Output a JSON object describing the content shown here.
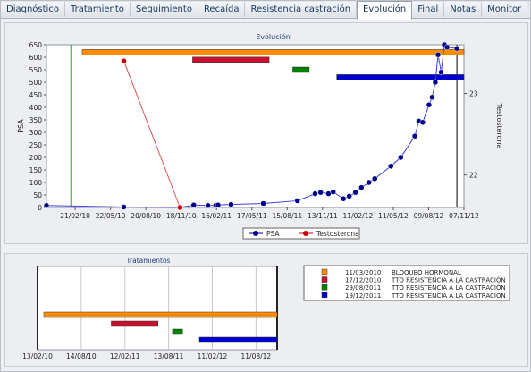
{
  "tabs": [
    {
      "label": "Diagnóstico"
    },
    {
      "label": "Tratamiento"
    },
    {
      "label": "Seguimiento"
    },
    {
      "label": "Recaída"
    },
    {
      "label": "Resistencia castración"
    },
    {
      "label": "Evolución",
      "active": true
    },
    {
      "label": "Final"
    },
    {
      "label": "Notas"
    },
    {
      "label": "Monitor"
    }
  ],
  "evolucion": {
    "chart_data": {
      "type": "line",
      "title": "Evolución",
      "ylabel": "PSA",
      "y2label": "Testosterona",
      "ylim": [
        0,
        650
      ],
      "y_ticks": [
        0,
        50,
        100,
        150,
        200,
        250,
        300,
        350,
        400,
        450,
        500,
        550,
        600,
        650
      ],
      "y2_ticks": [
        {
          "label": "23",
          "value": 23
        },
        {
          "label": "22",
          "value": 22
        }
      ],
      "y2lim": [
        21.6,
        23.6
      ],
      "xlim": [
        "2009-12-10",
        "2012-11-07"
      ],
      "x_ticks": [
        {
          "label": "21/02/10",
          "date": "2010-02-21"
        },
        {
          "label": "22/05/10",
          "date": "2010-05-22"
        },
        {
          "label": "20/08/10",
          "date": "2010-08-20"
        },
        {
          "label": "18/11/10",
          "date": "2010-11-18"
        },
        {
          "label": "16/02/11",
          "date": "2011-02-16"
        },
        {
          "label": "17/05/11",
          "date": "2011-05-17"
        },
        {
          "label": "15/08/11",
          "date": "2011-08-15"
        },
        {
          "label": "13/11/11",
          "date": "2011-11-13"
        },
        {
          "label": "11/02/12",
          "date": "2012-02-11"
        },
        {
          "label": "11/05/12",
          "date": "2012-05-11"
        },
        {
          "label": "09/08/12",
          "date": "2012-08-09"
        },
        {
          "label": "07/11/12",
          "date": "2012-11-07"
        }
      ],
      "series": [
        {
          "name": "PSA",
          "color": "#00008b",
          "marker": "circle",
          "axis": "left",
          "points": [
            [
              "2009-12-10",
              8
            ],
            [
              "2010-06-25",
              2
            ],
            [
              "2010-11-15",
              0
            ],
            [
              "2010-12-20",
              10
            ],
            [
              "2011-01-25",
              8
            ],
            [
              "2011-02-14",
              9
            ],
            [
              "2011-02-20",
              10
            ],
            [
              "2011-03-25",
              12
            ],
            [
              "2011-06-15",
              16
            ],
            [
              "2011-09-10",
              27
            ],
            [
              "2011-10-25",
              55
            ],
            [
              "2011-11-08",
              60
            ],
            [
              "2011-11-28",
              55
            ],
            [
              "2011-12-10",
              62
            ],
            [
              "2012-01-05",
              35
            ],
            [
              "2012-01-20",
              45
            ],
            [
              "2012-02-05",
              60
            ],
            [
              "2012-02-20",
              80
            ],
            [
              "2012-03-10",
              100
            ],
            [
              "2012-03-25",
              115
            ],
            [
              "2012-05-05",
              165
            ],
            [
              "2012-05-30",
              200
            ],
            [
              "2012-07-05",
              285
            ],
            [
              "2012-07-15",
              345
            ],
            [
              "2012-07-25",
              340
            ],
            [
              "2012-08-10",
              410
            ],
            [
              "2012-08-18",
              440
            ],
            [
              "2012-08-26",
              500
            ],
            [
              "2012-09-02",
              610
            ],
            [
              "2012-09-10",
              540
            ],
            [
              "2012-09-18",
              650
            ],
            [
              "2012-09-25",
              640
            ],
            [
              "2012-10-20",
              635
            ]
          ]
        },
        {
          "name": "Testosterona",
          "color": "#cc0000",
          "marker": "circle",
          "axis": "right",
          "points": [
            [
              "2010-06-25",
              23.4
            ],
            [
              "2010-11-15",
              21.6
            ]
          ]
        }
      ],
      "vlines": [
        {
          "date": "2010-02-10",
          "color": "#2ca02c"
        },
        {
          "date": "2012-10-20",
          "color": "#000000"
        }
      ],
      "treatment_bars": [
        {
          "start": "2010-03-11",
          "end": "2012-11-07",
          "color": "#ff8c00",
          "y": 620
        },
        {
          "start": "2010-12-17",
          "end": "2011-06-30",
          "color": "#c8102e",
          "y": 590
        },
        {
          "start": "2011-08-29",
          "end": "2011-10-10",
          "color": "#008000",
          "y": 550
        },
        {
          "start": "2011-12-19",
          "end": "2012-11-07",
          "color": "#0000cd",
          "y": 520
        }
      ],
      "legend": [
        {
          "name": "PSA",
          "color": "#00008b"
        },
        {
          "name": "Testosterona",
          "color": "#cc0000"
        }
      ],
      "legend_position": "bottom-center",
      "grid": false
    }
  },
  "tratamientos": {
    "chart_data": {
      "type": "gantt",
      "title": "Tratamientos",
      "xlim": [
        "2010-02-13",
        "2012-11-07"
      ],
      "x_ticks": [
        {
          "label": "13/02/10",
          "date": "2010-02-13"
        },
        {
          "label": "14/08/10",
          "date": "2010-08-14"
        },
        {
          "label": "12/02/11",
          "date": "2011-02-12"
        },
        {
          "label": "13/08/11",
          "date": "2011-08-13"
        },
        {
          "label": "11/02/12",
          "date": "2012-02-11"
        },
        {
          "label": "11/08/12",
          "date": "2012-08-11"
        }
      ],
      "bars": [
        {
          "start": "2010-03-11",
          "end": "2012-11-07",
          "color": "#ff8c00",
          "label": "BLOQUEO HORMONAL",
          "date_label": "11/03/2010"
        },
        {
          "start": "2010-12-17",
          "end": "2011-06-30",
          "color": "#c8102e",
          "label": "TTO RESISTENCIA A LA CASTRACIÓN",
          "date_label": "17/12/2010"
        },
        {
          "start": "2011-08-29",
          "end": "2011-10-10",
          "color": "#008000",
          "label": "TTO RESISTENCIA A LA CASTRACIÓN",
          "date_label": "29/08/2011"
        },
        {
          "start": "2011-12-19",
          "end": "2012-11-07",
          "color": "#0000cd",
          "label": "TTO RESISTENCIA A LA CASTRACIÓN",
          "date_label": "19/12/2011"
        }
      ],
      "grid": true
    }
  }
}
